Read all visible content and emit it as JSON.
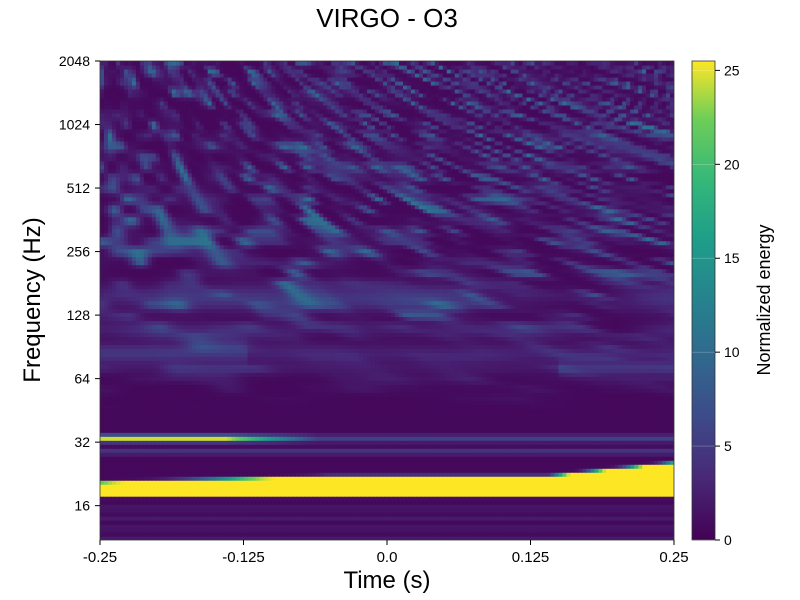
{
  "chart_data": {
    "type": "heatmap",
    "title": "VIRGO - O3",
    "xlabel": "Time (s)",
    "ylabel": "Frequency (Hz)",
    "xlim": [
      -0.25,
      0.25
    ],
    "ylim": [
      11,
      2048
    ],
    "yscale": "log2",
    "xticks": [
      -0.25,
      -0.125,
      0.0,
      0.125,
      0.25
    ],
    "xtick_labels": [
      "-0.25",
      "-0.125",
      "0.0",
      "0.125",
      "0.25"
    ],
    "yticks": [
      16,
      32,
      64,
      128,
      256,
      512,
      1024,
      2048
    ],
    "ytick_labels": [
      "16",
      "32",
      "64",
      "128",
      "256",
      "512",
      "1024",
      "2048"
    ],
    "colorbar": {
      "label": "Normalized energy",
      "range": [
        0,
        25.5
      ],
      "ticks": [
        0,
        5,
        10,
        15,
        20,
        25
      ],
      "tick_labels": [
        "0",
        "5",
        "10",
        "15",
        "20",
        "25"
      ],
      "colormap": "viridis"
    },
    "features": [
      {
        "name": "bright band",
        "freq_start_hz": 18,
        "freq_end_hz": 22,
        "time_range": [
          -0.25,
          0.25
        ],
        "energy": 25
      },
      {
        "name": "secondary band",
        "freq_hz": 33,
        "time_range": [
          -0.25,
          -0.08
        ],
        "energy": 22
      },
      {
        "name": "background noise",
        "freq_range_hz": [
          64,
          2048
        ],
        "energy_range": [
          0,
          10
        ]
      }
    ],
    "grid": false
  }
}
